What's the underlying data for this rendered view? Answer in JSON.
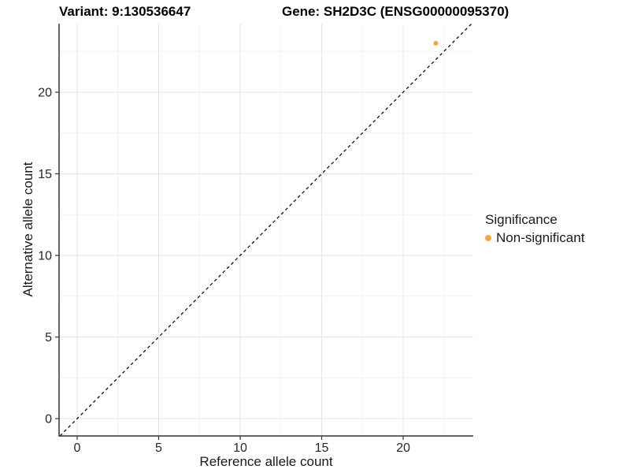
{
  "titles": {
    "variant": "Variant: 9:130536647",
    "gene": "Gene: SH2D3C (ENSG00000095370)"
  },
  "chart_data": {
    "type": "scatter",
    "title_left": "Variant: 9:130536647",
    "title_right": "Gene: SH2D3C (ENSG00000095370)",
    "xlabel": "Reference allele count",
    "ylabel": "Alternative allele count",
    "x_ticks": [
      0,
      5,
      10,
      15,
      20
    ],
    "y_ticks": [
      0,
      5,
      10,
      15,
      20
    ],
    "x_minor_ticks": [
      2.5,
      7.5,
      12.5,
      17.5,
      22.5
    ],
    "y_minor_ticks": [
      2.5,
      7.5,
      12.5,
      17.5,
      22.5
    ],
    "xlim": [
      -1.11,
      24.3
    ],
    "ylim": [
      -1.06,
      24.2
    ],
    "grid": "major+minor",
    "reference_line": {
      "type": "identity",
      "style": "dashed",
      "color": "#000000"
    },
    "points": [
      {
        "x": 22,
        "y": 23,
        "series": "Non-significant"
      }
    ],
    "legend": {
      "position": "right",
      "title": "Significance",
      "entries": [
        {
          "label": "Non-significant",
          "color": "#F9A442"
        }
      ]
    }
  },
  "colors": {
    "point": "#F9A442",
    "axis_line": "#333333",
    "grid_major": "#E4E4E4",
    "grid_minor": "#F2F2F2",
    "tick_text": "#262626",
    "background": "#FFFFFF"
  }
}
